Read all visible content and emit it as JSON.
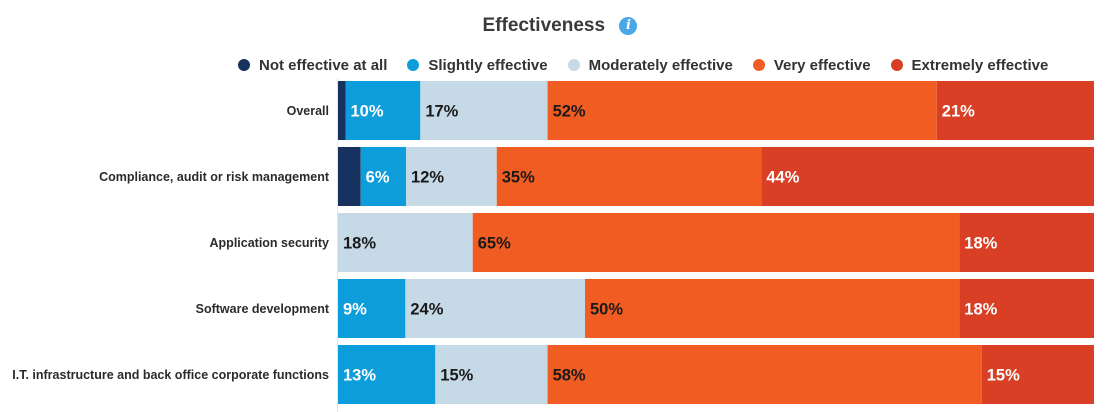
{
  "chart_title": "Effectiveness",
  "legend": [
    {
      "label": "Not effective at all",
      "color": "#17325e"
    },
    {
      "label": "Slightly effective",
      "color": "#0d9ddb"
    },
    {
      "label": "Moderately effective",
      "color": "#c6d9e6"
    },
    {
      "label": "Very effective",
      "color": "#f15c22"
    },
    {
      "label": "Extremely effective",
      "color": "#d83f24"
    }
  ],
  "chart_data": {
    "type": "bar",
    "orientation": "horizontal",
    "stacked": true,
    "normalized": true,
    "title": "Effectiveness",
    "legend_position": "top",
    "categories": [
      "Overall",
      "Compliance, audit or risk management",
      "Application security",
      "Software development",
      "I.T. infrastructure and back office corporate functions"
    ],
    "series": [
      {
        "name": "Not effective at all",
        "values": [
          1,
          3,
          0,
          0,
          0
        ],
        "labels": [
          "",
          "",
          "",
          "",
          ""
        ]
      },
      {
        "name": "Slightly effective",
        "values": [
          10,
          6,
          0,
          9,
          13
        ],
        "labels": [
          "10%",
          "6%",
          "",
          "9%",
          "13%"
        ]
      },
      {
        "name": "Moderately effective",
        "values": [
          17,
          12,
          18,
          24,
          15
        ],
        "labels": [
          "17%",
          "12%",
          "18%",
          "24%",
          "15%"
        ]
      },
      {
        "name": "Very effective",
        "values": [
          52,
          35,
          65,
          50,
          58
        ],
        "labels": [
          "52%",
          "35%",
          "65%",
          "50%",
          "58%"
        ]
      },
      {
        "name": "Extremely effective",
        "values": [
          21,
          44,
          18,
          18,
          15
        ],
        "labels": [
          "21%",
          "44%",
          "18%",
          "18%",
          "15%"
        ]
      }
    ]
  }
}
